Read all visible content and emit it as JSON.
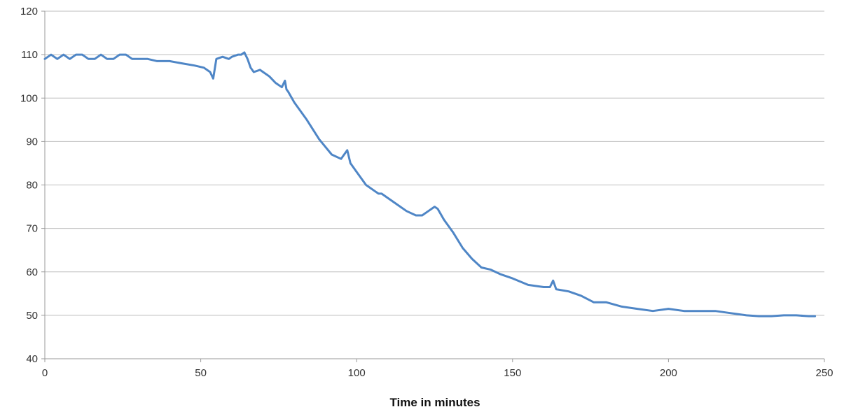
{
  "chart_data": {
    "type": "line",
    "title": "",
    "xlabel": "Time in minutes",
    "ylabel": "",
    "xlim": [
      0,
      250
    ],
    "ylim": [
      40,
      120
    ],
    "xticks": [
      0,
      50,
      100,
      150,
      200,
      250
    ],
    "yticks": [
      40,
      50,
      60,
      70,
      80,
      90,
      100,
      110,
      120
    ],
    "grid": true,
    "legend": "none",
    "colors": {
      "line": "#4f86c6",
      "grid": "#bdbdbd",
      "axis": "#9a9a9a"
    },
    "series": [
      {
        "x": [
          0,
          2,
          4,
          6,
          8,
          10,
          12,
          14,
          16,
          18,
          20,
          22,
          24,
          26,
          28,
          30,
          33,
          36,
          40,
          44,
          48,
          51,
          53,
          54,
          55,
          57,
          59,
          60,
          62,
          63,
          64,
          65,
          66,
          67,
          69,
          70,
          72,
          74,
          76,
          77,
          77.5,
          78,
          80,
          84,
          88,
          92,
          95,
          97,
          98,
          100,
          103,
          106,
          107,
          108,
          110,
          113,
          116,
          119,
          121,
          123,
          125,
          126,
          128,
          131,
          134,
          137,
          140,
          143,
          146,
          150,
          155,
          160,
          162,
          163,
          164,
          168,
          172,
          176,
          180,
          185,
          190,
          195,
          200,
          205,
          210,
          215,
          220,
          225,
          229,
          233,
          237,
          241,
          245,
          247
        ],
        "y": [
          109,
          110,
          109,
          110,
          109,
          110,
          110,
          109,
          109,
          110,
          109,
          109,
          110,
          110,
          109,
          109,
          109,
          108.5,
          108.5,
          108,
          107.5,
          107,
          106,
          104.5,
          109,
          109.5,
          109,
          109.5,
          110,
          110,
          110.5,
          109,
          107,
          106,
          106.5,
          106,
          105,
          103.5,
          102.5,
          104,
          102,
          101.5,
          99,
          95,
          90.5,
          87,
          86,
          88,
          85,
          83,
          80,
          78.5,
          78,
          78,
          77,
          75.5,
          74,
          73,
          73,
          74,
          75,
          74.5,
          72,
          69,
          65.5,
          63,
          61,
          60.5,
          59.5,
          58.5,
          57,
          56.5,
          56.5,
          58,
          56,
          55.5,
          54.5,
          53,
          53,
          52,
          51.5,
          51,
          51.5,
          51,
          51,
          51,
          50.5,
          50,
          49.8,
          49.8,
          50,
          50,
          49.8,
          49.8
        ]
      }
    ]
  }
}
